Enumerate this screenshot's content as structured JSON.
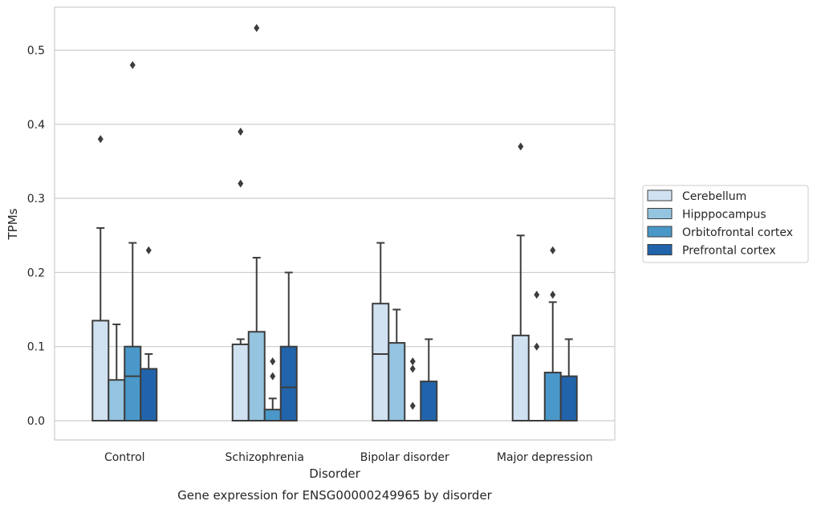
{
  "chart_data": {
    "type": "box",
    "title": "",
    "caption": "Gene expression for ENSG00000249965 by disorder",
    "xlabel": "Disorder",
    "ylabel": "TPMs",
    "ylim": [
      -0.026,
      0.558
    ],
    "yticks": [
      "0.0",
      "0.1",
      "0.2",
      "0.3",
      "0.4",
      "0.5"
    ],
    "grid": "horizontal",
    "legend_position": "right",
    "categories": [
      "Control",
      "Schizophrenia",
      "Bipolar disorder",
      "Major depression"
    ],
    "series": [
      {
        "name": "Cerebellum",
        "color": "#d0e1f2",
        "boxes": [
          {
            "min": 0.0,
            "q1": 0.0,
            "median": 0.0,
            "q3": 0.135,
            "max": 0.26,
            "outliers": [
              0.38
            ]
          },
          {
            "min": 0.0,
            "q1": 0.0,
            "median": 0.0,
            "q3": 0.103,
            "max": 0.11,
            "outliers": [
              0.32,
              0.39
            ]
          },
          {
            "min": 0.0,
            "q1": 0.0,
            "median": 0.09,
            "q3": 0.158,
            "max": 0.24,
            "outliers": []
          },
          {
            "min": 0.0,
            "q1": 0.0,
            "median": 0.0,
            "q3": 0.115,
            "max": 0.25,
            "outliers": [
              0.37
            ]
          }
        ]
      },
      {
        "name": "Hipppocampus",
        "color": "#94c4df",
        "boxes": [
          {
            "min": 0.0,
            "q1": 0.0,
            "median": 0.0,
            "q3": 0.055,
            "max": 0.13,
            "outliers": []
          },
          {
            "min": 0.0,
            "q1": 0.0,
            "median": 0.0,
            "q3": 0.12,
            "max": 0.22,
            "outliers": [
              0.53
            ]
          },
          {
            "min": 0.0,
            "q1": 0.0,
            "median": 0.0,
            "q3": 0.105,
            "max": 0.15,
            "outliers": []
          },
          {
            "min": 0.0,
            "q1": 0.0,
            "median": 0.0,
            "q3": 0.0,
            "max": 0.0,
            "outliers": [
              0.1,
              0.17
            ]
          }
        ]
      },
      {
        "name": "Orbitofrontal cortex",
        "color": "#4a98c9",
        "boxes": [
          {
            "min": 0.0,
            "q1": 0.0,
            "median": 0.06,
            "q3": 0.1,
            "max": 0.24,
            "outliers": [
              0.48
            ]
          },
          {
            "min": 0.0,
            "q1": 0.0,
            "median": 0.0,
            "q3": 0.015,
            "max": 0.03,
            "outliers": [
              0.06,
              0.08
            ]
          },
          {
            "min": 0.0,
            "q1": 0.0,
            "median": 0.0,
            "q3": 0.0,
            "max": 0.0,
            "outliers": [
              0.02,
              0.07,
              0.08
            ]
          },
          {
            "min": 0.0,
            "q1": 0.0,
            "median": 0.0,
            "q3": 0.065,
            "max": 0.16,
            "outliers": [
              0.17,
              0.23
            ]
          }
        ]
      },
      {
        "name": "Prefrontal cortex",
        "color": "#2164ab",
        "boxes": [
          {
            "min": 0.0,
            "q1": 0.0,
            "median": 0.0,
            "q3": 0.07,
            "max": 0.09,
            "outliers": [
              0.23
            ]
          },
          {
            "min": 0.0,
            "q1": 0.0,
            "median": 0.045,
            "q3": 0.1,
            "max": 0.2,
            "outliers": []
          },
          {
            "min": 0.0,
            "q1": 0.0,
            "median": 0.0,
            "q3": 0.053,
            "max": 0.11,
            "outliers": []
          },
          {
            "min": 0.0,
            "q1": 0.0,
            "median": 0.0,
            "q3": 0.06,
            "max": 0.11,
            "outliers": []
          }
        ]
      }
    ]
  }
}
